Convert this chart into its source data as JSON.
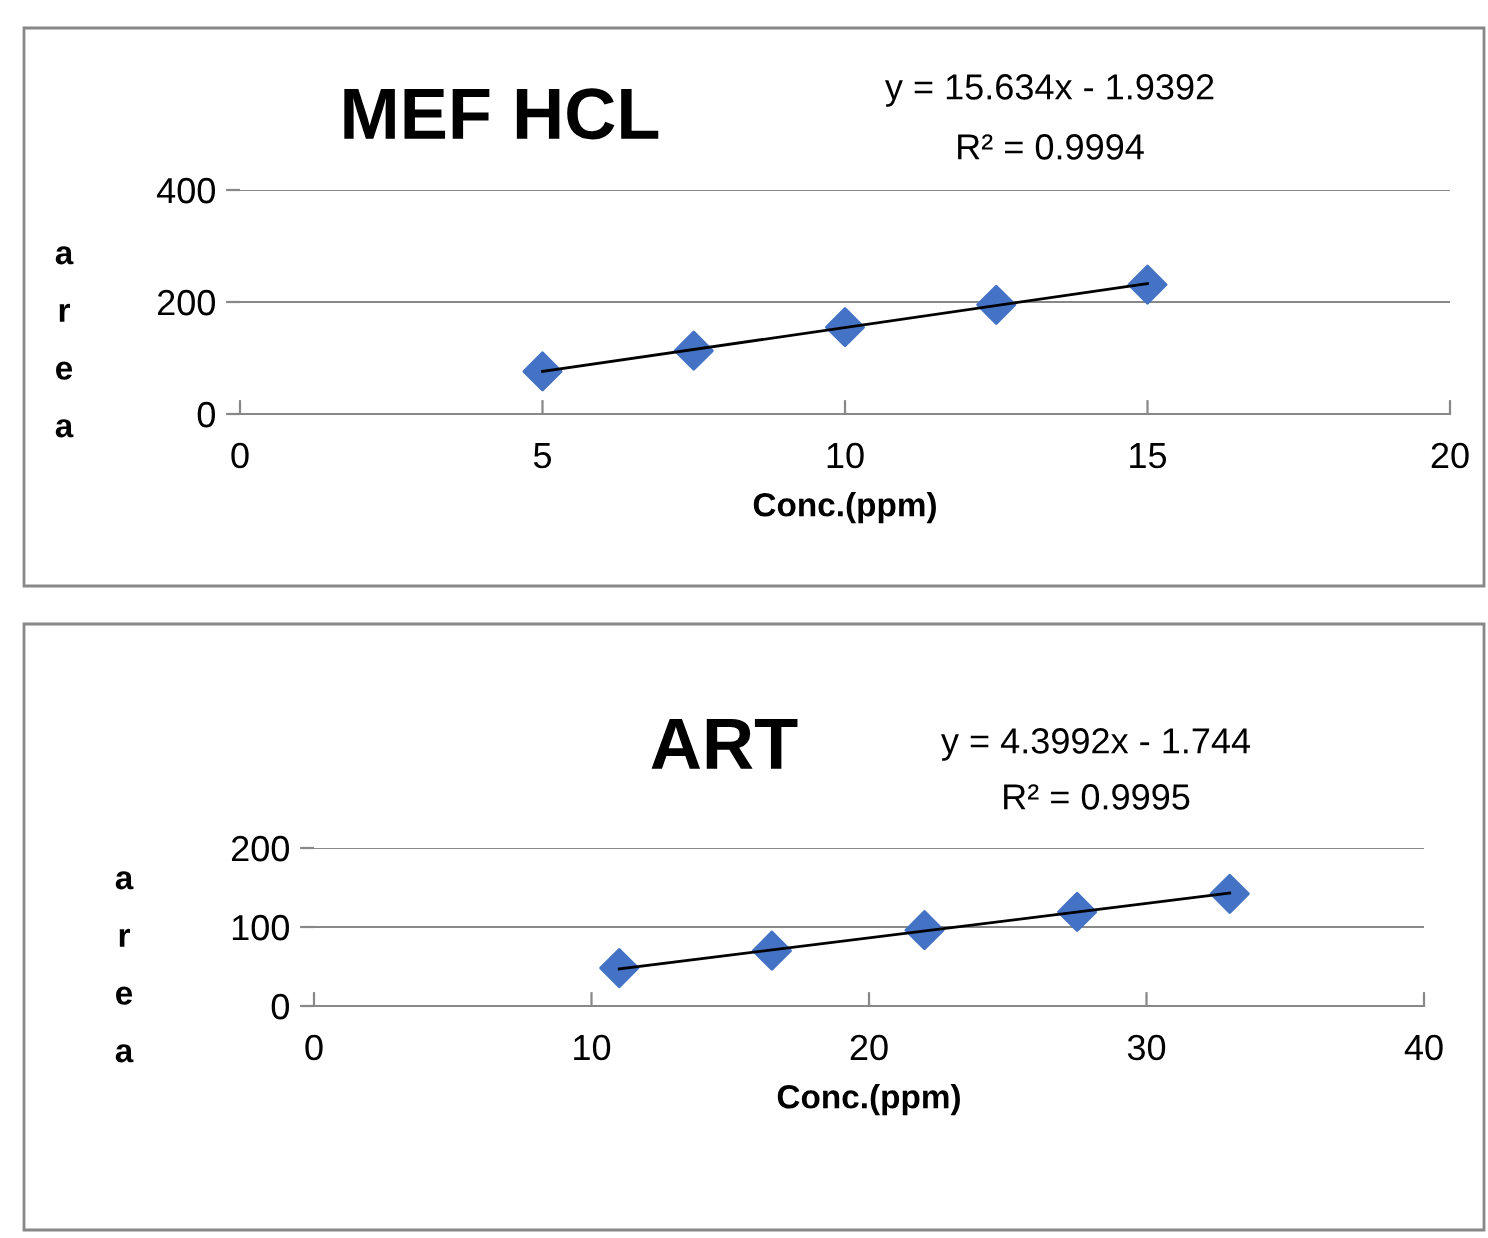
{
  "chart_data": [
    {
      "type": "scatter",
      "title": "MEF HCL",
      "xlabel": "Conc.(ppm)",
      "ylabel": "area",
      "annotations": [
        "y = 15.634x - 1.9392",
        "R² = 0.9994"
      ],
      "series": [
        {
          "color": "#4472c4",
          "x": [
            5,
            7.5,
            10,
            12.5,
            15
          ],
          "values": [
            76,
            113,
            155,
            195,
            231
          ],
          "marker": "diamond"
        },
        {
          "type": "line",
          "color": "#000000",
          "x": [
            5,
            15
          ],
          "values": [
            76,
            233
          ],
          "marker": "none",
          "line_style": "solid"
        }
      ],
      "xlim": [
        0,
        20
      ],
      "xticks": [
        0,
        5,
        10,
        15,
        20
      ],
      "ylim": [
        0,
        400
      ],
      "yticks": [
        0,
        200,
        400
      ],
      "grid": "y",
      "legend": false
    },
    {
      "type": "scatter",
      "title": "ART",
      "xlabel": "Conc.(ppm)",
      "ylabel": "area",
      "annotations": [
        "y = 4.3992x - 1.744",
        "R² = 0.9995"
      ],
      "series": [
        {
          "color": "#4472c4",
          "x": [
            11,
            16.5,
            22,
            27.5,
            33
          ],
          "values": [
            48,
            70,
            96,
            119,
            142
          ],
          "marker": "diamond"
        },
        {
          "type": "line",
          "color": "#000000",
          "x": [
            11,
            33
          ],
          "values": [
            47,
            143
          ],
          "marker": "none",
          "line_style": "solid"
        }
      ],
      "xlim": [
        0,
        40
      ],
      "xticks": [
        0,
        10,
        20,
        30,
        40
      ],
      "ylim": [
        0,
        200
      ],
      "yticks": [
        0,
        100,
        200
      ],
      "grid": "y",
      "legend": false
    }
  ]
}
